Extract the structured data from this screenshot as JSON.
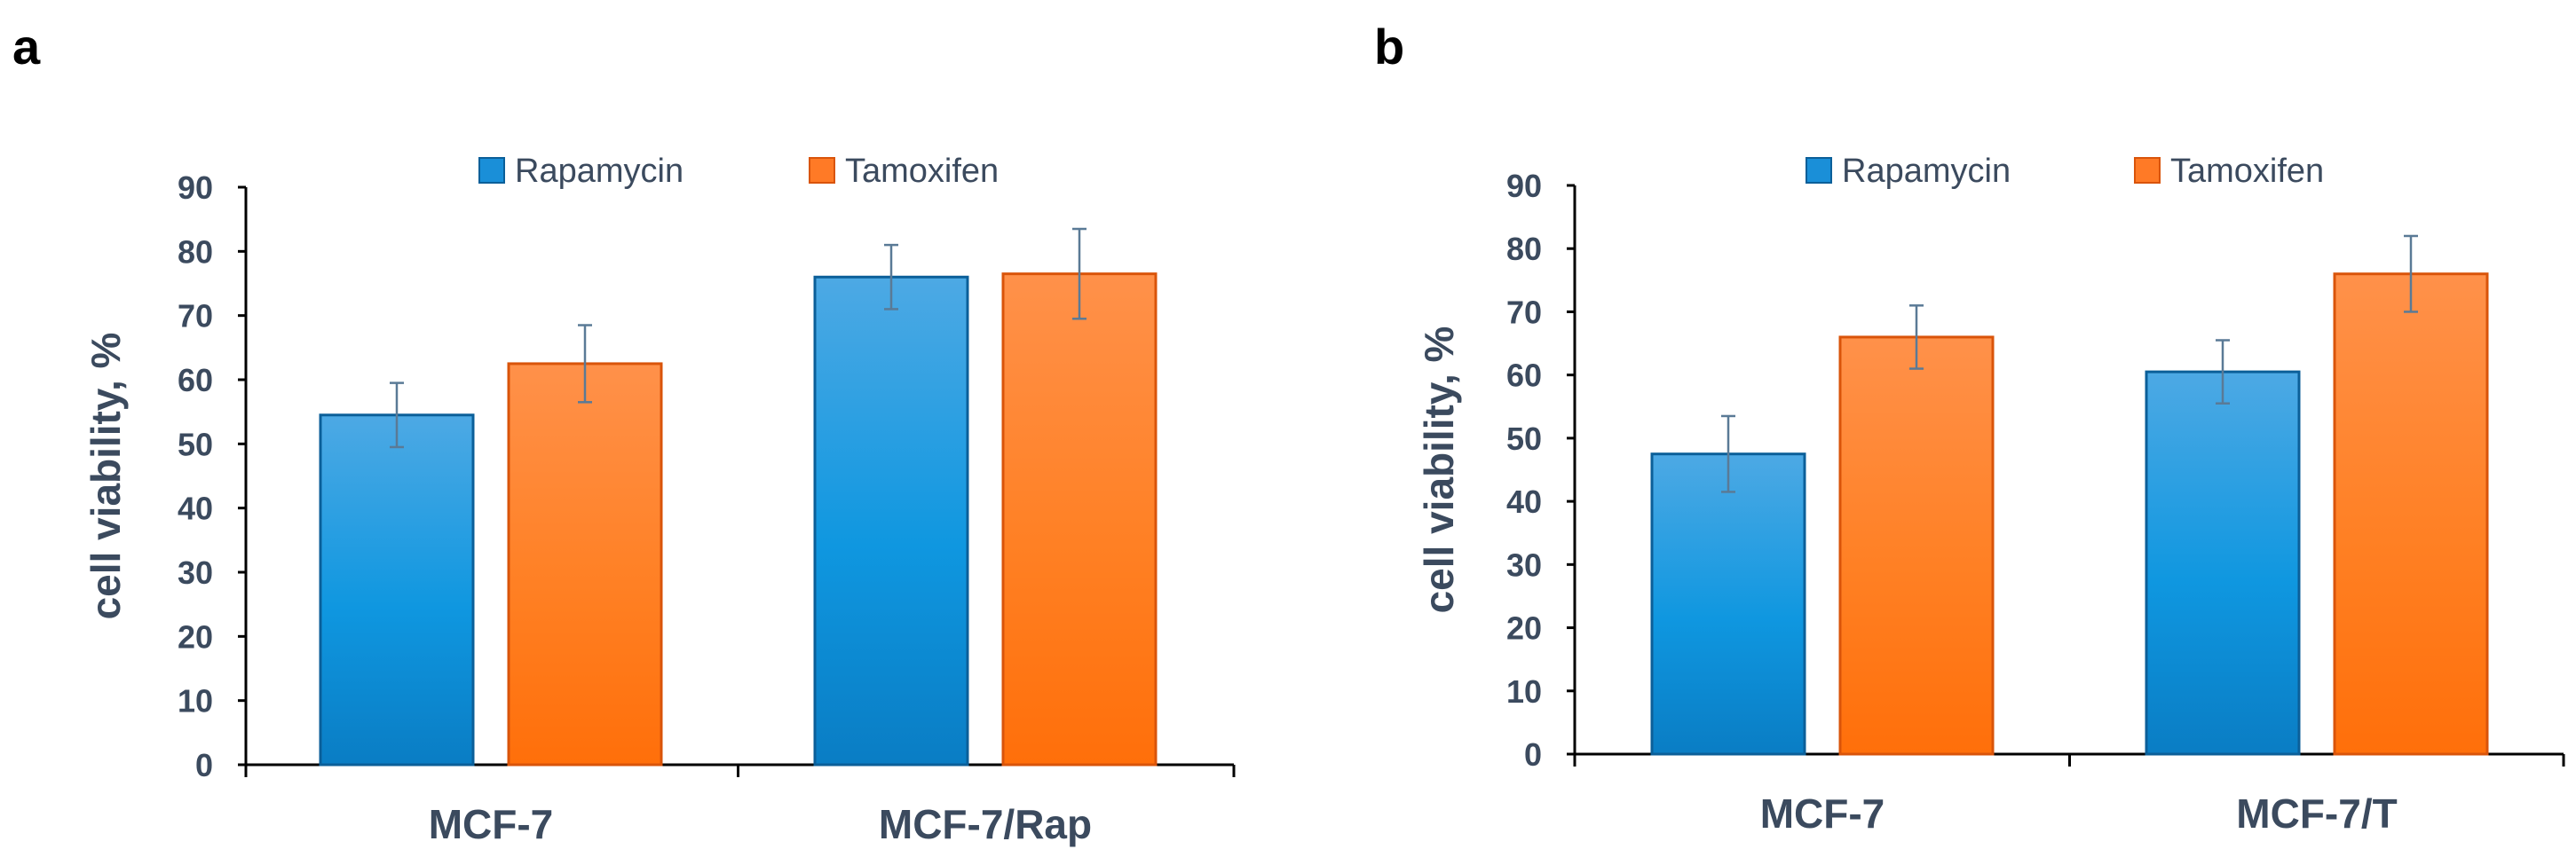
{
  "panels": {
    "a": "a",
    "b": "b"
  },
  "colors": {
    "rapamycin": "#1a8fd8",
    "tamoxifen": "#ff7a26",
    "text": "#3b4a5e",
    "error": "#5a7a96"
  },
  "chart_data": [
    {
      "panel": "a",
      "type": "bar",
      "title": "",
      "xlabel": "",
      "ylabel": "cell viability, %",
      "ylim": [
        0,
        90
      ],
      "yticks": [
        0,
        10,
        20,
        30,
        40,
        50,
        60,
        70,
        80,
        90
      ],
      "categories": [
        "MCF-7",
        "MCF-7/Rap"
      ],
      "legend_position": "top",
      "series": [
        {
          "name": "Rapamycin",
          "values": [
            54.5,
            76
          ],
          "errors": [
            5,
            5
          ]
        },
        {
          "name": "Tamoxifen",
          "values": [
            62.5,
            76.5
          ],
          "errors": [
            6,
            7
          ]
        }
      ]
    },
    {
      "panel": "b",
      "type": "bar",
      "title": "",
      "xlabel": "",
      "ylabel": "cell viability, %",
      "ylim": [
        0,
        90
      ],
      "yticks": [
        0,
        10,
        20,
        30,
        40,
        50,
        60,
        70,
        80,
        90
      ],
      "categories": [
        "MCF-7",
        "MCF-7/T"
      ],
      "legend_position": "top",
      "series": [
        {
          "name": "Rapamycin",
          "values": [
            47.5,
            60.5
          ],
          "errors": [
            6,
            5
          ]
        },
        {
          "name": "Tamoxifen",
          "values": [
            66,
            76
          ],
          "errors": [
            5,
            6
          ]
        }
      ]
    }
  ]
}
